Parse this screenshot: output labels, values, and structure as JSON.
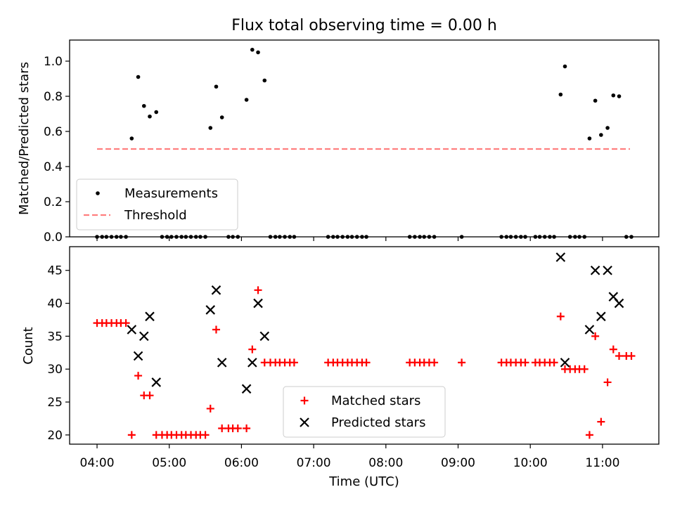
{
  "chart_data": {
    "title": "Flux total observing time = 0.00 h",
    "xlabel": "Time (UTC)",
    "x_unit": "hours (UTC)",
    "xlim": [
      3.62,
      11.78
    ],
    "xticks": [
      {
        "value": 4,
        "label": "04:00"
      },
      {
        "value": 5,
        "label": "05:00"
      },
      {
        "value": 6,
        "label": "06:00"
      },
      {
        "value": 7,
        "label": "07:00"
      },
      {
        "value": 8,
        "label": "08:00"
      },
      {
        "value": 9,
        "label": "09:00"
      },
      {
        "value": 10,
        "label": "10:00"
      },
      {
        "value": 11,
        "label": "11:00"
      }
    ],
    "panels": [
      {
        "type": "scatter",
        "ylabel": "Matched/Predicted stars",
        "ylim": [
          0.0,
          1.12
        ],
        "yticks": [
          {
            "value": 0.0,
            "label": "0.0"
          },
          {
            "value": 0.2,
            "label": "0.2"
          },
          {
            "value": 0.4,
            "label": "0.4"
          },
          {
            "value": 0.6,
            "label": "0.6"
          },
          {
            "value": 0.8,
            "label": "0.8"
          },
          {
            "value": 1.0,
            "label": "1.0"
          }
        ],
        "legend_position": "lower-left",
        "series": [
          {
            "name": "Measurements",
            "marker": "dot",
            "color": "#000000",
            "x": [
              4.0,
              4.07,
              4.13,
              4.2,
              4.27,
              4.33,
              4.4,
              4.48,
              4.57,
              4.65,
              4.73,
              4.82,
              4.9,
              4.97,
              5.03,
              5.1,
              5.17,
              5.23,
              5.3,
              5.37,
              5.43,
              5.5,
              5.57,
              5.65,
              5.73,
              5.82,
              5.88,
              5.95,
              6.07,
              6.15,
              6.23,
              6.32,
              6.4,
              6.47,
              6.53,
              6.6,
              6.67,
              6.73,
              7.2,
              7.27,
              7.33,
              7.4,
              7.47,
              7.53,
              7.6,
              7.67,
              7.73,
              8.33,
              8.4,
              8.47,
              8.53,
              8.6,
              8.67,
              9.05,
              9.6,
              9.67,
              9.73,
              9.8,
              9.87,
              9.93,
              10.07,
              10.13,
              10.2,
              10.27,
              10.33,
              10.42,
              10.48,
              10.55,
              10.62,
              10.68,
              10.75,
              10.82,
              10.9,
              10.98,
              11.07,
              11.15,
              11.23,
              11.33,
              11.4
            ],
            "y": [
              0,
              0,
              0,
              0,
              0,
              0,
              0,
              0.56,
              0.91,
              0.745,
              0.685,
              0.71,
              0,
              0,
              0,
              0,
              0,
              0,
              0,
              0,
              0,
              0,
              0.62,
              0.855,
              0.68,
              0,
              0,
              0,
              0.78,
              1.065,
              1.05,
              0.89,
              0,
              0,
              0,
              0,
              0,
              0,
              0,
              0,
              0,
              0,
              0,
              0,
              0,
              0,
              0,
              0,
              0,
              0,
              0,
              0,
              0,
              0,
              0,
              0,
              0,
              0,
              0,
              0,
              0,
              0,
              0,
              0,
              0,
              0.81,
              0.97,
              0,
              0,
              0,
              0,
              0.56,
              0.775,
              0.58,
              0.62,
              0.805,
              0.8,
              0,
              0
            ]
          },
          {
            "name": "Threshold",
            "marker": "dashed-line",
            "color": "#ff7f7f",
            "x": [
              4.0,
              11.38
            ],
            "y": [
              0.5,
              0.5
            ]
          }
        ]
      },
      {
        "type": "scatter",
        "ylabel": "Count",
        "ylim": [
          18.6,
          48.6
        ],
        "yticks": [
          {
            "value": 20,
            "label": "20"
          },
          {
            "value": 25,
            "label": "25"
          },
          {
            "value": 30,
            "label": "30"
          },
          {
            "value": 35,
            "label": "35"
          },
          {
            "value": 40,
            "label": "40"
          },
          {
            "value": 45,
            "label": "45"
          }
        ],
        "legend_position": "lower-center",
        "series": [
          {
            "name": "Matched stars",
            "marker": "plus",
            "color": "#ff0000",
            "x": [
              4.0,
              4.07,
              4.13,
              4.2,
              4.27,
              4.33,
              4.4,
              4.48,
              4.57,
              4.65,
              4.73,
              4.82,
              4.9,
              4.97,
              5.03,
              5.1,
              5.17,
              5.23,
              5.3,
              5.37,
              5.43,
              5.5,
              5.57,
              5.65,
              5.73,
              5.82,
              5.88,
              5.95,
              6.07,
              6.15,
              6.23,
              6.32,
              6.4,
              6.47,
              6.53,
              6.6,
              6.67,
              6.73,
              7.2,
              7.27,
              7.33,
              7.4,
              7.47,
              7.53,
              7.6,
              7.67,
              7.73,
              8.33,
              8.4,
              8.47,
              8.53,
              8.6,
              8.67,
              9.05,
              9.6,
              9.67,
              9.73,
              9.8,
              9.87,
              9.93,
              10.07,
              10.13,
              10.2,
              10.27,
              10.33,
              10.42,
              10.48,
              10.55,
              10.62,
              10.68,
              10.75,
              10.82,
              10.9,
              10.98,
              11.07,
              11.15,
              11.23,
              11.33,
              11.4
            ],
            "y": [
              37,
              37,
              37,
              37,
              37,
              37,
              37,
              20,
              29,
              26,
              26,
              20,
              20,
              20,
              20,
              20,
              20,
              20,
              20,
              20,
              20,
              20,
              24,
              36,
              21,
              21,
              21,
              21,
              21,
              33,
              42,
              31,
              31,
              31,
              31,
              31,
              31,
              31,
              31,
              31,
              31,
              31,
              31,
              31,
              31,
              31,
              31,
              31,
              31,
              31,
              31,
              31,
              31,
              31,
              31,
              31,
              31,
              31,
              31,
              31,
              31,
              31,
              31,
              31,
              31,
              38,
              30,
              30,
              30,
              30,
              30,
              20,
              35,
              22,
              28,
              33,
              32,
              32,
              32
            ]
          },
          {
            "name": "Predicted stars",
            "marker": "x",
            "color": "#000000",
            "x": [
              4.48,
              4.57,
              4.65,
              4.73,
              4.82,
              5.57,
              5.65,
              5.73,
              6.07,
              6.15,
              6.23,
              6.32,
              10.42,
              10.48,
              10.82,
              10.9,
              10.98,
              11.07,
              11.15,
              11.23
            ],
            "y": [
              36,
              32,
              35,
              38,
              28,
              39,
              42,
              31,
              27,
              31,
              40,
              35,
              47,
              31,
              36,
              45,
              38,
              45,
              41,
              40
            ]
          }
        ]
      }
    ]
  }
}
